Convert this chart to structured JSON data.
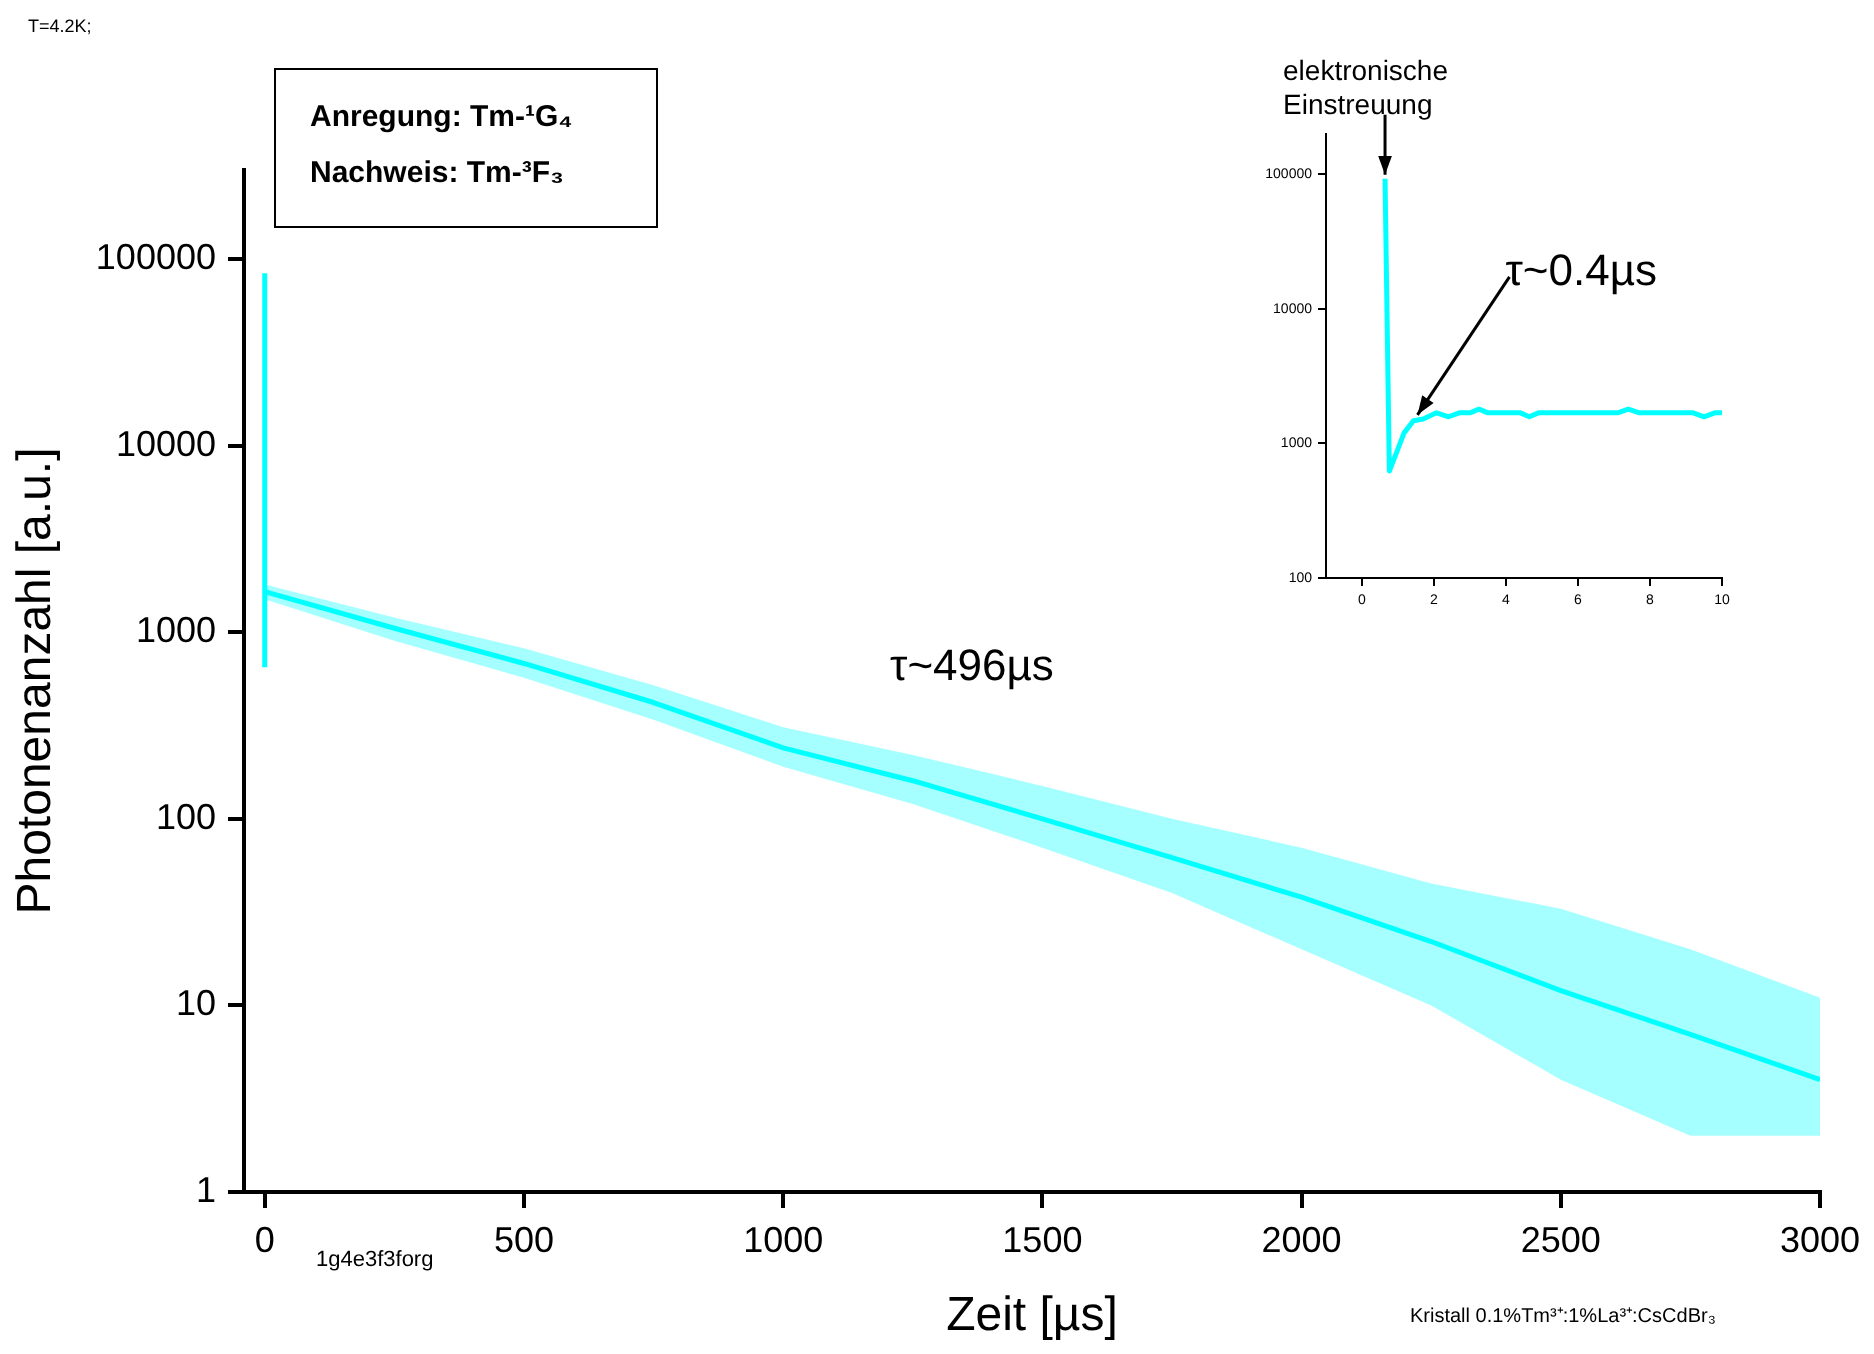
{
  "chart_data": [
    {
      "type": "line",
      "xlabel": "Zeit [µs]",
      "ylabel": "Photonenanzahl [a.u.]",
      "log": "y",
      "xlim": [
        -40,
        3000
      ],
      "xticks": [
        0,
        500,
        1000,
        1500,
        2000,
        2500,
        3000
      ],
      "ylim": [
        1,
        300000
      ],
      "yticks": [
        1,
        10,
        100,
        1000,
        10000,
        100000
      ],
      "grid": false,
      "legend": false,
      "marker": "none",
      "series": [
        {
          "color": "#00ffff",
          "x": [
            0,
            250,
            500,
            750,
            1000,
            1250,
            1500,
            1750,
            2000,
            2250,
            2500,
            2750,
            3000
          ],
          "values": [
            1650,
            1050,
            680,
            420,
            240,
            160,
            100,
            62,
            38,
            22,
            12,
            7,
            4
          ],
          "lower": [
            1500,
            900,
            570,
            340,
            190,
            120,
            70,
            40,
            20,
            10,
            4,
            2,
            2
          ],
          "upper": [
            1800,
            1200,
            820,
            520,
            310,
            220,
            150,
            100,
            70,
            45,
            33,
            20,
            11
          ]
        },
        {
          "color": "#00ffff",
          "x": [
            0,
            0
          ],
          "values": [
            650,
            84000
          ]
        }
      ],
      "annotations": [
        "T=4.2K;",
        "Anregung: Tm-¹G₄",
        "Nachweis: Tm-³F₃",
        "τ~496µs",
        "1g4e3f3forg",
        "Kristall 0.1%Tm³⁺:1%La³⁺:CsCdBr₃"
      ]
    },
    {
      "type": "line",
      "log": "y",
      "xlim": [
        -1,
        10
      ],
      "xticks": [
        0,
        2,
        4,
        6,
        8,
        10
      ],
      "ylim": [
        100,
        200000
      ],
      "yticks": [
        100,
        1000,
        10000,
        100000
      ],
      "grid": false,
      "legend": false,
      "marker": "none",
      "series": [
        {
          "color": "#00ffff",
          "x": [
            0.64,
            0.76,
            1.17,
            1.43,
            1.7,
            2.07,
            2.41,
            2.7,
            3.0,
            3.25,
            3.5,
            4.4,
            4.65,
            4.9,
            7.1,
            7.4,
            7.7,
            9.2,
            9.5,
            9.8,
            10
          ],
          "values": [
            93000,
            624,
            1200,
            1475,
            1520,
            1690,
            1580,
            1690,
            1690,
            1800,
            1690,
            1690,
            1580,
            1690,
            1690,
            1800,
            1690,
            1690,
            1580,
            1690,
            1690
          ]
        }
      ],
      "annotations": [
        {
          "text": "elektronische Einstreuung",
          "x": 0.64,
          "y": 93000
        },
        {
          "text": "τ~0.4µs",
          "x": 1.43,
          "y": 1475
        }
      ]
    }
  ]
}
